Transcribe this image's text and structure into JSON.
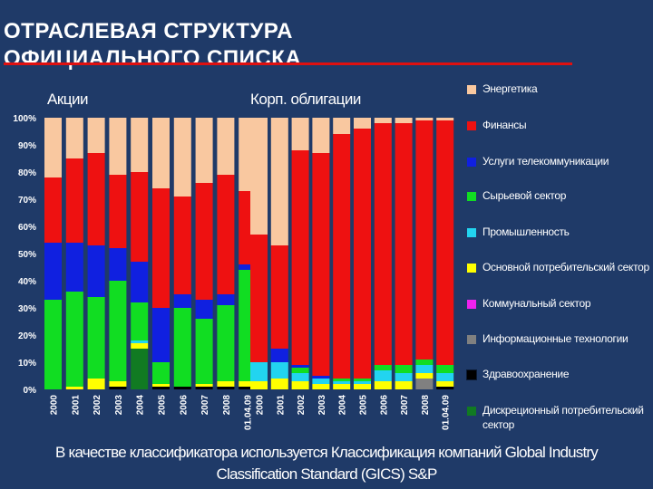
{
  "title": {
    "line1": "ОТРАСЛЕВАЯ СТРУКТУРА",
    "line2": "ОФИЦИАЛЬНОГО СПИСКА"
  },
  "footnote": {
    "line1": "В качестве классификатора используется Классификация компаний Global Industry",
    "line2": "Classification Standard (GICS) S&P"
  },
  "chart_data": {
    "type": "bar",
    "stacked": true,
    "percent": true,
    "ylim": [
      0,
      100
    ],
    "y_ticks": [
      "0%",
      "10%",
      "20%",
      "30%",
      "40%",
      "50%",
      "60%",
      "70%",
      "80%",
      "90%",
      "100%"
    ],
    "legend_position": "right",
    "series": [
      {
        "name": "Энергетика",
        "color": "#f9c8a0"
      },
      {
        "name": "Финансы",
        "color": "#ee1111"
      },
      {
        "name": "Услуги телекоммуникации",
        "color": "#1020e0"
      },
      {
        "name": "Сырьевой сектор",
        "color": "#11dd22"
      },
      {
        "name": "Промышленность",
        "color": "#22d4f0"
      },
      {
        "name": "Основной потребительский сектор",
        "color": "#ffff00"
      },
      {
        "name": "Коммунальный сектор",
        "color": "#ee22ee"
      },
      {
        "name": "Информационные технологии",
        "color": "#808080"
      },
      {
        "name": "Здравоохранение",
        "color": "#000000"
      },
      {
        "name": "Дискреционный потребительский сектор",
        "color": "#117a22"
      }
    ],
    "panels": [
      {
        "label": "Акции",
        "categories": [
          "2000",
          "2001",
          "2002",
          "2003",
          "2004",
          "2005",
          "2006",
          "2007",
          "2008",
          "01.04.09"
        ],
        "stacks": [
          [
            {
              "s": 3,
              "v": 1
            },
            {
              "s": 3,
              "v": 32
            },
            {
              "s": 2,
              "v": 21
            },
            {
              "s": 1,
              "v": 24
            },
            {
              "s": 0,
              "v": 22
            }
          ],
          [
            {
              "s": 5,
              "v": 1
            },
            {
              "s": 3,
              "v": 35
            },
            {
              "s": 2,
              "v": 18
            },
            {
              "s": 1,
              "v": 31
            },
            {
              "s": 0,
              "v": 15
            }
          ],
          [
            {
              "s": 5,
              "v": 4
            },
            {
              "s": 3,
              "v": 30
            },
            {
              "s": 2,
              "v": 19
            },
            {
              "s": 1,
              "v": 34
            },
            {
              "s": 0,
              "v": 13
            }
          ],
          [
            {
              "s": 8,
              "v": 1
            },
            {
              "s": 5,
              "v": 2
            },
            {
              "s": 3,
              "v": 37
            },
            {
              "s": 2,
              "v": 12
            },
            {
              "s": 1,
              "v": 27
            },
            {
              "s": 0,
              "v": 21
            }
          ],
          [
            {
              "s": 9,
              "v": 15
            },
            {
              "s": 5,
              "v": 2
            },
            {
              "s": 4,
              "v": 1
            },
            {
              "s": 3,
              "v": 14
            },
            {
              "s": 2,
              "v": 15
            },
            {
              "s": 1,
              "v": 33
            },
            {
              "s": 0,
              "v": 20
            }
          ],
          [
            {
              "s": 8,
              "v": 1
            },
            {
              "s": 5,
              "v": 1
            },
            {
              "s": 3,
              "v": 8
            },
            {
              "s": 2,
              "v": 20
            },
            {
              "s": 1,
              "v": 44
            },
            {
              "s": 0,
              "v": 26
            }
          ],
          [
            {
              "s": 8,
              "v": 1
            },
            {
              "s": 3,
              "v": 29
            },
            {
              "s": 2,
              "v": 5
            },
            {
              "s": 1,
              "v": 36
            },
            {
              "s": 0,
              "v": 29
            }
          ],
          [
            {
              "s": 8,
              "v": 1
            },
            {
              "s": 5,
              "v": 1
            },
            {
              "s": 3,
              "v": 24
            },
            {
              "s": 2,
              "v": 7
            },
            {
              "s": 1,
              "v": 43
            },
            {
              "s": 0,
              "v": 24
            }
          ],
          [
            {
              "s": 8,
              "v": 1
            },
            {
              "s": 5,
              "v": 2
            },
            {
              "s": 3,
              "v": 28
            },
            {
              "s": 2,
              "v": 4
            },
            {
              "s": 1,
              "v": 44
            },
            {
              "s": 0,
              "v": 21
            }
          ],
          [
            {
              "s": 8,
              "v": 1
            },
            {
              "s": 5,
              "v": 2
            },
            {
              "s": 3,
              "v": 41
            },
            {
              "s": 2,
              "v": 2
            },
            {
              "s": 1,
              "v": 27
            },
            {
              "s": 0,
              "v": 27
            }
          ]
        ]
      },
      {
        "label": "Корп. облигации",
        "categories": [
          "2000",
          "2001",
          "2002",
          "2003",
          "2004",
          "2005",
          "2006",
          "2007",
          "2008",
          "01.04.09"
        ],
        "stacks": [
          [
            {
              "s": 5,
              "v": 3
            },
            {
              "s": 4,
              "v": 7
            },
            {
              "s": 1,
              "v": 47
            },
            {
              "s": 0,
              "v": 43
            }
          ],
          [
            {
              "s": 5,
              "v": 4
            },
            {
              "s": 4,
              "v": 6
            },
            {
              "s": 2,
              "v": 5
            },
            {
              "s": 1,
              "v": 38
            },
            {
              "s": 0,
              "v": 47
            }
          ],
          [
            {
              "s": 5,
              "v": 3
            },
            {
              "s": 4,
              "v": 3
            },
            {
              "s": 3,
              "v": 2
            },
            {
              "s": 2,
              "v": 1
            },
            {
              "s": 1,
              "v": 79
            },
            {
              "s": 0,
              "v": 12
            }
          ],
          [
            {
              "s": 5,
              "v": 2
            },
            {
              "s": 4,
              "v": 2
            },
            {
              "s": 2,
              "v": 1
            },
            {
              "s": 1,
              "v": 82
            },
            {
              "s": 0,
              "v": 13
            }
          ],
          [
            {
              "s": 5,
              "v": 2
            },
            {
              "s": 4,
              "v": 1
            },
            {
              "s": 3,
              "v": 1
            },
            {
              "s": 1,
              "v": 90
            },
            {
              "s": 0,
              "v": 6
            }
          ],
          [
            {
              "s": 5,
              "v": 2
            },
            {
              "s": 4,
              "v": 1
            },
            {
              "s": 3,
              "v": 1
            },
            {
              "s": 1,
              "v": 92
            },
            {
              "s": 0,
              "v": 4
            }
          ],
          [
            {
              "s": 5,
              "v": 3
            },
            {
              "s": 4,
              "v": 4
            },
            {
              "s": 3,
              "v": 2
            },
            {
              "s": 1,
              "v": 89
            },
            {
              "s": 0,
              "v": 2
            }
          ],
          [
            {
              "s": 5,
              "v": 3
            },
            {
              "s": 4,
              "v": 3
            },
            {
              "s": 3,
              "v": 3
            },
            {
              "s": 1,
              "v": 89
            },
            {
              "s": 0,
              "v": 2
            }
          ],
          [
            {
              "s": 7,
              "v": 4
            },
            {
              "s": 5,
              "v": 2
            },
            {
              "s": 4,
              "v": 3
            },
            {
              "s": 3,
              "v": 2
            },
            {
              "s": 1,
              "v": 88
            },
            {
              "s": 0,
              "v": 1
            }
          ],
          [
            {
              "s": 8,
              "v": 1
            },
            {
              "s": 5,
              "v": 2
            },
            {
              "s": 4,
              "v": 3
            },
            {
              "s": 3,
              "v": 3
            },
            {
              "s": 1,
              "v": 90
            },
            {
              "s": 0,
              "v": 1
            }
          ]
        ]
      }
    ]
  }
}
